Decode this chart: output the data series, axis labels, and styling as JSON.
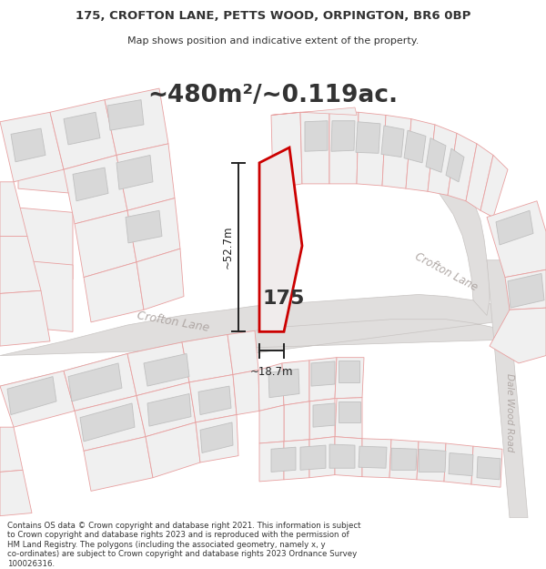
{
  "title_line1": "175, CROFTON LANE, PETTS WOOD, ORPINGTON, BR6 0BP",
  "title_line2": "Map shows position and indicative extent of the property.",
  "area_text": "~480m²/~0.119ac.",
  "dim_height": "~52.7m",
  "dim_width": "~18.7m",
  "label_175": "175",
  "road_label_main": "Crofton Lane",
  "road_label_upper": "Crofton Lane",
  "road_label_right": "Dale Wood Road",
  "footer": "Contains OS data © Crown copyright and database right 2021. This information is subject to Crown copyright and database rights 2023 and is reproduced with the permission of HM Land Registry. The polygons (including the associated geometry, namely x, y co-ordinates) are subject to Crown copyright and database rights 2023 Ordnance Survey 100026316.",
  "map_bg": "#ffffff",
  "lot_fill": "#f0f0f0",
  "lot_edge": "#e8a0a0",
  "lot_edge_thin": "#f0b0b0",
  "building_fill": "#d8d8d8",
  "building_edge": "#c0c0c0",
  "road_fill": "#e0dedd",
  "road_edge": "#c8c4c2",
  "prop_fill": "#f0ecec",
  "prop_edge": "#cc0000",
  "dim_color": "#222222",
  "road_text": "#b0a8a5",
  "text_color": "#333333",
  "title_bg": "#ffffff",
  "footer_bg": "#ffffff",
  "figsize": [
    6.0,
    6.25
  ],
  "dpi": 100
}
